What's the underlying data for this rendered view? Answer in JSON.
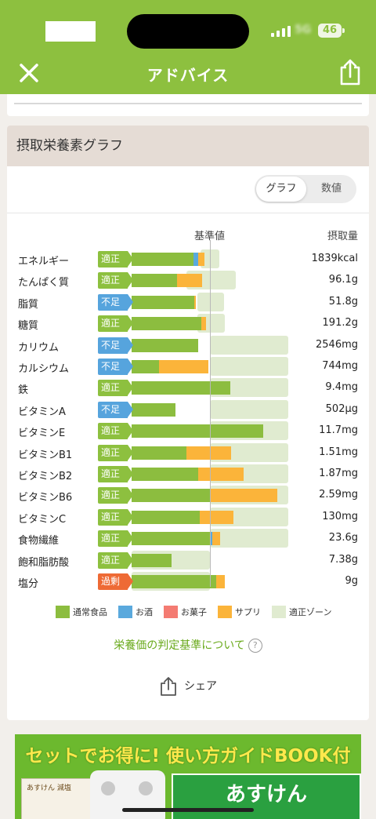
{
  "nav": {
    "title": "アドバイス"
  },
  "status": {
    "battery": "46",
    "carrier": "5G"
  },
  "card": {
    "title": "摂取栄養素グラフ",
    "toggle": {
      "graph": "グラフ",
      "numeric": "数値"
    },
    "col_reference": "基準値",
    "col_intake": "摂取量"
  },
  "colors": {
    "normal": "#8cbd3f",
    "alcohol": "#5aa9dd",
    "sweets": "#f47b72",
    "supplement": "#fbb43a",
    "zone": "#e0ebd0",
    "badge_ok": "#8dc03f",
    "badge_low": "#56a4dd",
    "badge_over": "#ee6a35"
  },
  "chart_data": {
    "type": "bar",
    "scale_note": "percent of reference value (reference = 100)",
    "x_range": [
      0,
      200
    ],
    "series_names": [
      "通常食品",
      "お酒",
      "お菓子",
      "サプリ"
    ],
    "rows": [
      {
        "name": "エネルギー",
        "status": "適正",
        "value": "1839kcal",
        "normal": 79,
        "alcohol": 6,
        "sweets": 0,
        "supplement": 8,
        "zone": [
          88,
          112
        ]
      },
      {
        "name": "たんぱく質",
        "status": "適正",
        "value": "96.1g",
        "normal": 58,
        "alcohol": 0,
        "sweets": 0,
        "supplement": 32,
        "zone": [
          70,
          133
        ]
      },
      {
        "name": "脂質",
        "status": "不足",
        "value": "51.8g",
        "normal": 80,
        "alcohol": 0,
        "sweets": 0,
        "supplement": 2,
        "zone": [
          84,
          118
        ]
      },
      {
        "name": "糖質",
        "status": "適正",
        "value": "191.2g",
        "normal": 89,
        "alcohol": 0,
        "sweets": 0,
        "supplement": 6,
        "zone": [
          84,
          119
        ]
      },
      {
        "name": "カリウム",
        "status": "不足",
        "value": "2546mg",
        "normal": 85,
        "alcohol": 0,
        "sweets": 0,
        "supplement": 0,
        "zone": [
          100,
          200
        ]
      },
      {
        "name": "カルシウム",
        "status": "不足",
        "value": "744mg",
        "normal": 35,
        "alcohol": 0,
        "sweets": 0,
        "supplement": 63,
        "zone": [
          100,
          200
        ]
      },
      {
        "name": "鉄",
        "status": "適正",
        "value": "9.4mg",
        "normal": 126,
        "alcohol": 0,
        "sweets": 0,
        "supplement": 0,
        "zone": [
          100,
          200
        ]
      },
      {
        "name": "ビタミンA",
        "status": "不足",
        "value": "502µg",
        "normal": 56,
        "alcohol": 0,
        "sweets": 0,
        "supplement": 0,
        "zone": [
          100,
          200
        ]
      },
      {
        "name": "ビタミンE",
        "status": "適正",
        "value": "11.7mg",
        "normal": 168,
        "alcohol": 0,
        "sweets": 0,
        "supplement": 0,
        "zone": [
          100,
          200
        ]
      },
      {
        "name": "ビタミンB1",
        "status": "適正",
        "value": "1.51mg",
        "normal": 70,
        "alcohol": 0,
        "sweets": 0,
        "supplement": 57,
        "zone": [
          100,
          200
        ]
      },
      {
        "name": "ビタミンB2",
        "status": "適正",
        "value": "1.87mg",
        "normal": 85,
        "alcohol": 0,
        "sweets": 0,
        "supplement": 58,
        "zone": [
          100,
          200
        ]
      },
      {
        "name": "ビタミンB6",
        "status": "適正",
        "value": "2.59mg",
        "normal": 100,
        "alcohol": 0,
        "sweets": 0,
        "supplement": 86,
        "zone": [
          100,
          200
        ]
      },
      {
        "name": "ビタミンC",
        "status": "適正",
        "value": "130mg",
        "normal": 87,
        "alcohol": 0,
        "sweets": 0,
        "supplement": 43,
        "zone": [
          100,
          200
        ]
      },
      {
        "name": "食物繊維",
        "status": "適正",
        "value": "23.6g",
        "normal": 100,
        "alcohol": 3,
        "sweets": 0,
        "supplement": 10,
        "zone": [
          100,
          200
        ]
      },
      {
        "name": "飽和脂肪酸",
        "status": "適正",
        "value": "7.38g",
        "normal": 51,
        "alcohol": 0,
        "sweets": 0,
        "supplement": 0,
        "zone": [
          0,
          100
        ]
      },
      {
        "name": "塩分",
        "status": "過剰",
        "value": "9g",
        "normal": 108,
        "alcohol": 0,
        "sweets": 0,
        "supplement": 11,
        "zone": [
          0,
          100
        ]
      }
    ]
  },
  "legend": [
    {
      "label": "通常食品",
      "color": "#8cbd3f"
    },
    {
      "label": "お酒",
      "color": "#5aa9dd"
    },
    {
      "label": "お菓子",
      "color": "#f47b72"
    },
    {
      "label": "サプリ",
      "color": "#fbb43a"
    },
    {
      "label": "適正ゾーン",
      "color": "#e0ebd0"
    }
  ],
  "criteria_link": "栄養価の判定基準について",
  "criteria_help": "?",
  "share_label": "シェア",
  "banner": {
    "headline": "セットでお得に! 使い方ガイドBOOK付",
    "sub": "あすけん",
    "pack_label": "あすけん 減塩"
  }
}
